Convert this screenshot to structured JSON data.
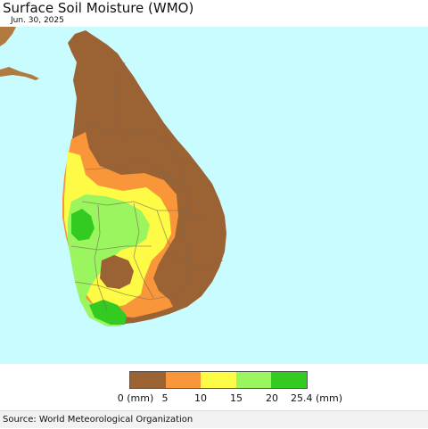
{
  "header": {
    "title": "Surface Soil Moisture (WMO)",
    "date": "Jun. 30, 2025"
  },
  "colors": {
    "ocean": "#c8fcff",
    "land_outside": "#b07a40",
    "border": "#7a6a5a"
  },
  "legend": {
    "colors": [
      "#9b6233",
      "#f9963a",
      "#fdfb45",
      "#9af55e",
      "#33cb22"
    ],
    "labels": [
      "0 (mm)",
      "5",
      "10",
      "15",
      "20",
      "25.4 (mm)"
    ]
  },
  "footer": {
    "source": "Source: World Meteorological Organization"
  }
}
